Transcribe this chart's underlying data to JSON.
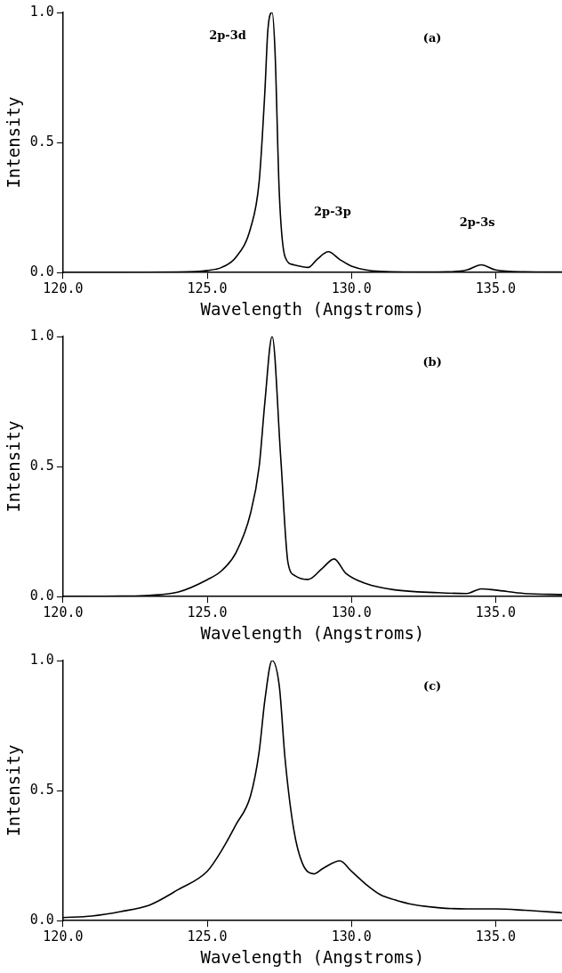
{
  "chart_data": [
    {
      "type": "line",
      "xlabel": "Wavelength (Angstroms)",
      "ylabel": "Intensity",
      "xlim": [
        120,
        137.3
      ],
      "ylim": [
        0,
        1
      ],
      "xticks": [
        {
          "value": 120,
          "label": "120.0"
        },
        {
          "value": 125,
          "label": "125.0"
        },
        {
          "value": 130,
          "label": "130.0"
        },
        {
          "value": 135,
          "label": "135.0"
        }
      ],
      "yticks": [
        {
          "value": 0,
          "label": "0.0"
        },
        {
          "value": 0.5,
          "label": "0.5"
        },
        {
          "value": 1,
          "label": "1.0"
        }
      ],
      "grid": false,
      "legend": false,
      "marker": "none",
      "line_style": "solid",
      "annotations": [
        "2p-3d",
        "2p-3p",
        "2p-3s",
        "(a)"
      ],
      "x": [
        120,
        124,
        125,
        125.5,
        126,
        126.5,
        126.8,
        127,
        127.1,
        127.25,
        127.35,
        127.5,
        127.7,
        128,
        128.5,
        128.8,
        129.2,
        129.6,
        130,
        131,
        133,
        134,
        134.5,
        135,
        136,
        137.3
      ],
      "series": [
        {
          "color": "#000000",
          "values": [
            0,
            0.002,
            0.008,
            0.02,
            0.06,
            0.17,
            0.35,
            0.7,
            0.93,
            1,
            0.85,
            0.3,
            0.06,
            0.03,
            0.02,
            0.05,
            0.08,
            0.05,
            0.025,
            0.005,
            0.002,
            0.01,
            0.03,
            0.01,
            0.003,
            0.002
          ]
        }
      ]
    },
    {
      "type": "line",
      "xlabel": "Wavelength (Angstroms)",
      "ylabel": "Intensity",
      "xlim": [
        120,
        137.3
      ],
      "ylim": [
        0,
        1
      ],
      "xticks": [
        {
          "value": 120,
          "label": "120.0"
        },
        {
          "value": 125,
          "label": "125.0"
        },
        {
          "value": 130,
          "label": "130.0"
        },
        {
          "value": 135,
          "label": "135.0"
        }
      ],
      "yticks": [
        {
          "value": 0,
          "label": "0.0"
        },
        {
          "value": 0.5,
          "label": "0.5"
        },
        {
          "value": 1,
          "label": "1.0"
        }
      ],
      "grid": false,
      "legend": false,
      "marker": "none",
      "line_style": "solid",
      "annotations": [
        "(b)"
      ],
      "x": [
        120,
        122,
        123,
        124,
        125,
        125.5,
        126,
        126.5,
        126.8,
        127,
        127.25,
        127.55,
        127.8,
        128.05,
        128.5,
        129,
        129.4,
        129.8,
        130.5,
        131.5,
        133,
        134,
        134.5,
        135,
        136,
        137.3
      ],
      "series": [
        {
          "color": "#000000",
          "values": [
            0,
            0.002,
            0.005,
            0.018,
            0.065,
            0.1,
            0.17,
            0.32,
            0.5,
            0.75,
            1,
            0.53,
            0.13,
            0.08,
            0.066,
            0.11,
            0.145,
            0.09,
            0.05,
            0.026,
            0.015,
            0.012,
            0.03,
            0.025,
            0.012,
            0.008
          ]
        }
      ]
    },
    {
      "type": "line",
      "xlabel": "Wavelength (Angstroms)",
      "ylabel": "Intensity",
      "xlim": [
        120,
        137.3
      ],
      "ylim": [
        0,
        1
      ],
      "xticks": [
        {
          "value": 120,
          "label": "120.0"
        },
        {
          "value": 125,
          "label": "125.0"
        },
        {
          "value": 130,
          "label": "130.0"
        },
        {
          "value": 135,
          "label": "135.0"
        }
      ],
      "yticks": [
        {
          "value": 0,
          "label": "0.0"
        },
        {
          "value": 0.5,
          "label": "0.5"
        },
        {
          "value": 1,
          "label": "1.0"
        }
      ],
      "grid": false,
      "legend": false,
      "marker": "none",
      "line_style": "solid",
      "annotations": [
        "(c)"
      ],
      "x": [
        120,
        121,
        122,
        123,
        124,
        125,
        125.5,
        126,
        126.5,
        126.8,
        127,
        127.25,
        127.5,
        127.7,
        128,
        128.3,
        128.7,
        129,
        129.6,
        130,
        130.5,
        131,
        131.5,
        132,
        133,
        134,
        135,
        136,
        137.3
      ],
      "series": [
        {
          "color": "#000000",
          "values": [
            0.012,
            0.018,
            0.035,
            0.06,
            0.12,
            0.19,
            0.27,
            0.37,
            0.48,
            0.65,
            0.85,
            1,
            0.9,
            0.62,
            0.35,
            0.22,
            0.18,
            0.2,
            0.23,
            0.19,
            0.14,
            0.1,
            0.08,
            0.065,
            0.05,
            0.045,
            0.045,
            0.04,
            0.03
          ]
        }
      ]
    }
  ]
}
